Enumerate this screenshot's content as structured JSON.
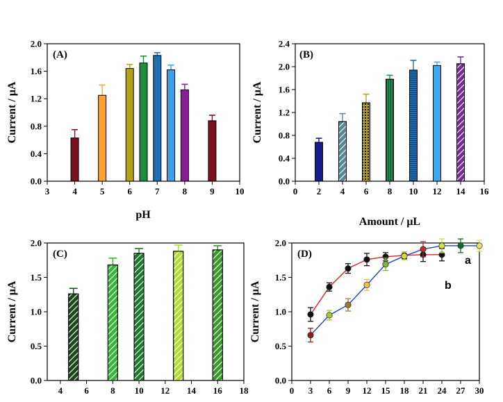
{
  "chart_data": [
    {
      "type": "bar",
      "panel_label": "(A)",
      "title": "",
      "xlabel": "pH",
      "ylabel": "Current / μA",
      "xlim": [
        3,
        10
      ],
      "ylim": [
        0,
        2.0
      ],
      "x_ticks": [
        "3",
        "4",
        "5",
        "6",
        "7",
        "8",
        "9",
        "10"
      ],
      "y_ticks": [
        "0.0",
        "0.4",
        "0.8",
        "1.2",
        "1.6",
        "2.0"
      ],
      "bars": [
        {
          "x": 4,
          "value": 0.63,
          "error": 0.12,
          "color": "#7a1020",
          "pattern": "solid"
        },
        {
          "x": 5,
          "value": 1.25,
          "error": 0.15,
          "color": "#ffa033",
          "pattern": "solid"
        },
        {
          "x": 6,
          "value": 1.64,
          "error": 0.06,
          "color": "#b4a21c",
          "pattern": "solid"
        },
        {
          "x": 6.5,
          "value": 1.72,
          "error": 0.1,
          "color": "#1e8c3c",
          "pattern": "solid"
        },
        {
          "x": 7,
          "value": 1.83,
          "error": 0.04,
          "color": "#1e6fb4",
          "pattern": "solid"
        },
        {
          "x": 7.5,
          "value": 1.62,
          "error": 0.07,
          "color": "#3ea0e6",
          "pattern": "solid"
        },
        {
          "x": 8,
          "value": 1.33,
          "error": 0.08,
          "color": "#8a1e96",
          "pattern": "solid"
        },
        {
          "x": 9,
          "value": 0.88,
          "error": 0.08,
          "color": "#7a1020",
          "pattern": "solid"
        }
      ]
    },
    {
      "type": "bar",
      "panel_label": "(B)",
      "title": "",
      "xlabel": "Amount / μL",
      "ylabel": "Current / μA",
      "xlim": [
        0,
        16
      ],
      "ylim": [
        0,
        2.4
      ],
      "x_ticks": [
        "0",
        "2",
        "4",
        "6",
        "8",
        "10",
        "12",
        "14",
        "16"
      ],
      "y_ticks": [
        "0.0",
        "0.4",
        "0.8",
        "1.2",
        "1.6",
        "2.0",
        "2.4"
      ],
      "bars": [
        {
          "x": 2,
          "value": 0.68,
          "error": 0.07,
          "color": "#1a1a8c",
          "pattern": "solid"
        },
        {
          "x": 4,
          "value": 1.04,
          "error": 0.14,
          "color": "#5a8a96",
          "pattern": "diag"
        },
        {
          "x": 6,
          "value": 1.37,
          "error": 0.15,
          "color": "#b4a21c",
          "pattern": "dots"
        },
        {
          "x": 8,
          "value": 1.78,
          "error": 0.07,
          "color": "#1e8c50",
          "pattern": "vlines"
        },
        {
          "x": 10,
          "value": 1.94,
          "error": 0.17,
          "color": "#1e6fb4",
          "pattern": "hlines"
        },
        {
          "x": 12,
          "value": 2.02,
          "error": 0.06,
          "color": "#3eaaf0",
          "pattern": "solid"
        },
        {
          "x": 14,
          "value": 2.05,
          "error": 0.12,
          "color": "#7a2a96",
          "pattern": "diag"
        }
      ]
    },
    {
      "type": "bar",
      "panel_label": "(C)",
      "title": "",
      "xlabel": "",
      "ylabel": "Current / μA",
      "xlim": [
        3,
        18
      ],
      "ylim": [
        0,
        2.0
      ],
      "x_ticks": [
        "4",
        "6",
        "8",
        "10",
        "12",
        "14",
        "16",
        "18"
      ],
      "y_ticks": [
        "0.0",
        "0.5",
        "1.0",
        "1.5",
        "2.0"
      ],
      "bars": [
        {
          "x": 5,
          "value": 1.26,
          "error": 0.08,
          "color": "#1a4a1a",
          "pattern": "diag"
        },
        {
          "x": 8,
          "value": 1.68,
          "error": 0.1,
          "color": "#3ab43a",
          "pattern": "diag"
        },
        {
          "x": 10,
          "value": 1.85,
          "error": 0.07,
          "color": "#1e7a2a",
          "pattern": "diag"
        },
        {
          "x": 13,
          "value": 1.88,
          "error": 0.09,
          "color": "#b4dc32",
          "pattern": "diag"
        },
        {
          "x": 16,
          "value": 1.9,
          "error": 0.06,
          "color": "#3a9a2a",
          "pattern": "diag"
        }
      ]
    },
    {
      "type": "line",
      "panel_label": "(D)",
      "title": "",
      "xlabel": "",
      "ylabel": "Current / μA",
      "xlim": [
        0,
        30
      ],
      "ylim": [
        0,
        2.0
      ],
      "x_ticks": [
        "0",
        "3",
        "6",
        "9",
        "12",
        "15",
        "18",
        "21",
        "24",
        "27",
        "30"
      ],
      "y_ticks": [
        "0.0",
        "0.5",
        "1.0",
        "1.5",
        "2.0"
      ],
      "series": [
        {
          "name": "a",
          "line_color": "#e02020",
          "marker_color": "#111111",
          "x": [
            3,
            6,
            9,
            12,
            15,
            18,
            21,
            24
          ],
          "y": [
            0.96,
            1.36,
            1.63,
            1.76,
            1.8,
            1.82,
            1.83,
            1.83
          ],
          "err": [
            0.1,
            0.06,
            0.07,
            0.09,
            0.06,
            0.05,
            0.1,
            0.09
          ]
        },
        {
          "name": "b",
          "line_color": "#2040d0",
          "x": [
            3,
            6,
            9,
            12,
            15,
            18,
            21,
            24,
            27,
            30
          ],
          "y": [
            0.66,
            0.95,
            1.1,
            1.39,
            1.69,
            1.81,
            1.91,
            1.96,
            1.96,
            1.96
          ],
          "err": [
            0.1,
            0.07,
            0.09,
            0.08,
            0.09,
            0.06,
            0.11,
            0.1,
            0.1,
            0.08
          ],
          "marker_colors": [
            "#8a2020",
            "#9acd32",
            "#9a7a30",
            "#f0c040",
            "#7ab43a",
            "#d4e040",
            "#b43030",
            "#d4e040",
            "#1a6a2a",
            "#e8e060"
          ]
        }
      ],
      "annotations": [
        "a",
        "b"
      ]
    }
  ]
}
